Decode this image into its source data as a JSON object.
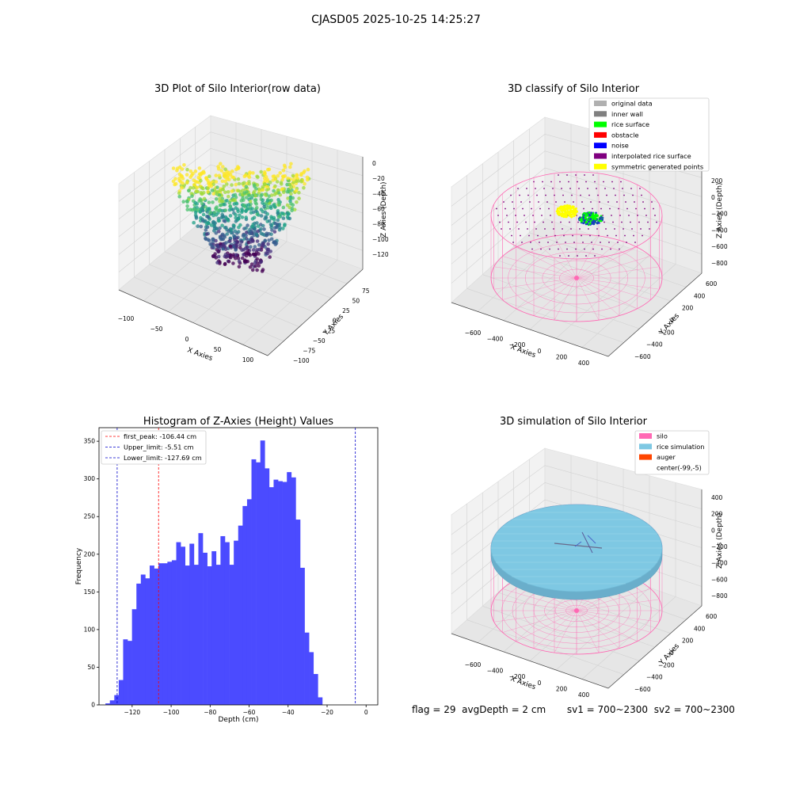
{
  "figure": {
    "title": "CJASD05 2025-10-25 14:25:27",
    "footer": {
      "flag": "flag = 29",
      "avg_depth": "avgDepth = 2 cm",
      "sv1": "sv1 = 700~2300",
      "sv2": "sv2 = 700~2300"
    }
  },
  "colors": {
    "histogram_bar": "#4b4bff",
    "first_peak_line": "#ff0000",
    "limit_line": "#0000cc",
    "silo": "#ff69b4",
    "rice_simulation": "#7ec8e3",
    "auger": "#ff4500",
    "original_data": "#b0b0b0",
    "inner_wall": "#808080",
    "rice_surface": "#00ff00",
    "obstacle": "#ff0000",
    "noise": "#0000ff",
    "interpolated_rice_surface": "#800080",
    "symmetric_generated_points": "#ffff00"
  },
  "chart_data": [
    {
      "type": "scatter",
      "projection": "3d",
      "title": "3D Plot of Silo Interior(row data)",
      "xlabel": "X Axies",
      "ylabel": "Y Axies",
      "zlabel": "Z Axies (Depth)",
      "xticks": [
        "−100",
        "−50",
        "0",
        "50",
        "100"
      ],
      "yticks": [
        "−100",
        "−75",
        "−50",
        "−25",
        "0",
        "25",
        "50",
        "75"
      ],
      "zticks": [
        "0",
        "−20",
        "−40",
        "−60",
        "−80",
        "−100",
        "−120"
      ],
      "colormap": "viridis",
      "grid": true
    },
    {
      "type": "scatter",
      "projection": "3d",
      "title": "3D classify of Silo Interior",
      "zlabel": "Z Axies (Depth)",
      "xlabel": "X Axies",
      "ylabel": "Y Axies",
      "xticks": [
        "−600",
        "−400",
        "−200",
        "0",
        "200",
        "400"
      ],
      "yticks": [
        "−600",
        "−400",
        "−200",
        "0",
        "200",
        "400",
        "600"
      ],
      "zticks": [
        "200",
        "0",
        "−200",
        "−400",
        "−600",
        "−800"
      ],
      "legend_position": "top-right",
      "legend": [
        "original data",
        "inner wall",
        "rice surface",
        "obstacle",
        "noise",
        "interpolated rice surface",
        "symmetric generated points"
      ],
      "grid": true
    },
    {
      "type": "bar",
      "title": "Histogram of Z-Axies (Height) Values",
      "xlabel": "Depth (cm)",
      "ylabel": "Frequency",
      "xlim": [
        -137,
        6
      ],
      "ylim": [
        0,
        368
      ],
      "xticks": [
        "−120",
        "−100",
        "−80",
        "−60",
        "−40",
        "−20",
        "0"
      ],
      "yticks": [
        "0",
        "50",
        "100",
        "150",
        "200",
        "250",
        "300",
        "350"
      ],
      "bin_start": -133.7,
      "bin_width": 2.27,
      "values": [
        2,
        6,
        13,
        33,
        87,
        85,
        127,
        161,
        173,
        168,
        185,
        181,
        188,
        188,
        190,
        192,
        216,
        210,
        185,
        214,
        186,
        228,
        202,
        184,
        204,
        186,
        224,
        216,
        186,
        218,
        238,
        264,
        273,
        326,
        322,
        351,
        314,
        289,
        299,
        297,
        296,
        309,
        302,
        246,
        182,
        96,
        70,
        41,
        10
      ],
      "vlines": [
        {
          "x": -106.44,
          "label": "first_peak: -106.44 cm",
          "color": "#ff0000"
        },
        {
          "x": -5.51,
          "label": "Upper_limit: -5.51 cm",
          "color": "#0000cc"
        },
        {
          "x": -127.69,
          "label": "Lower_limit: -127.69 cm",
          "color": "#0000cc"
        }
      ],
      "legend_position": "top-left",
      "grid": false
    },
    {
      "type": "scatter",
      "projection": "3d",
      "title": "3D simulation of Silo Interior",
      "xlabel": "X Axies",
      "ylabel": "Y Axies",
      "zlabel": "Z Axies (Depth)",
      "xticks": [
        "−600",
        "−400",
        "−200",
        "0",
        "200",
        "400"
      ],
      "yticks": [
        "−600",
        "−400",
        "−200",
        "0",
        "200",
        "400",
        "600"
      ],
      "zticks": [
        "400",
        "200",
        "0",
        "−200",
        "−400",
        "−600",
        "−800"
      ],
      "legend_position": "top-right",
      "legend": [
        "silo",
        "rice simulation",
        "auger",
        "center(-99,-5)"
      ],
      "grid": true
    }
  ]
}
